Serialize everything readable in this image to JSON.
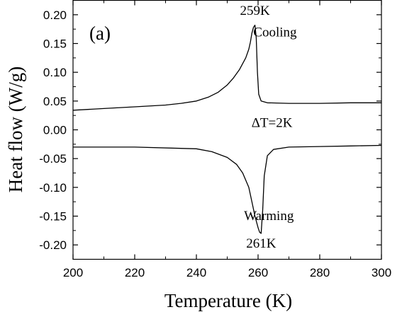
{
  "chart_data": {
    "type": "line",
    "panel_label": "(a)",
    "xlabel": "Temperature (K)",
    "ylabel": "Heat flow (W/g)",
    "xlim": [
      200,
      300
    ],
    "ylim": [
      -0.225,
      0.225
    ],
    "x_ticks": [
      200,
      220,
      240,
      260,
      280,
      300
    ],
    "x_tick_labels": [
      "200",
      "220",
      "240",
      "260",
      "280",
      "300"
    ],
    "y_ticks": [
      0.2,
      0.15,
      0.1,
      0.05,
      0.0,
      -0.05,
      -0.1,
      -0.15,
      -0.2
    ],
    "y_tick_labels": [
      "0.20",
      "0.15",
      "0.10",
      "0.05",
      "0.00",
      "-0.05",
      "-0.10",
      "-0.15",
      "-0.20"
    ],
    "series": [
      {
        "name": "Cooling",
        "x": [
          200,
          210,
          220,
          230,
          235,
          240,
          244,
          247,
          250,
          252,
          254,
          256,
          257,
          257.5,
          258,
          258.5,
          259,
          259.4,
          259.8,
          260.2,
          261,
          263,
          270,
          280,
          290,
          300
        ],
        "y": [
          0.034,
          0.037,
          0.04,
          0.043,
          0.046,
          0.05,
          0.057,
          0.065,
          0.078,
          0.09,
          0.105,
          0.125,
          0.14,
          0.152,
          0.168,
          0.178,
          0.182,
          0.16,
          0.1,
          0.062,
          0.05,
          0.047,
          0.046,
          0.046,
          0.047,
          0.047
        ]
      },
      {
        "name": "Warming",
        "x": [
          200,
          220,
          240,
          245,
          250,
          253,
          255,
          257,
          258,
          259,
          260,
          260.5,
          261,
          261.5,
          262,
          263,
          265,
          270,
          280,
          290,
          300
        ],
        "y": [
          -0.03,
          -0.03,
          -0.033,
          -0.038,
          -0.048,
          -0.06,
          -0.075,
          -0.1,
          -0.125,
          -0.15,
          -0.17,
          -0.178,
          -0.18,
          -0.14,
          -0.08,
          -0.045,
          -0.034,
          -0.03,
          -0.029,
          -0.028,
          -0.027
        ]
      }
    ],
    "annotations": [
      {
        "text": "259K",
        "x": 259,
        "y": 0.2
      },
      {
        "text": "Cooling",
        "x": 265.5,
        "y": 0.162
      },
      {
        "text": "ΔT=2K",
        "x": 264.5,
        "y": 0.005
      },
      {
        "text": "Warming",
        "x": 263.5,
        "y": -0.157
      },
      {
        "text": "261K",
        "x": 261,
        "y": -0.205
      }
    ]
  }
}
